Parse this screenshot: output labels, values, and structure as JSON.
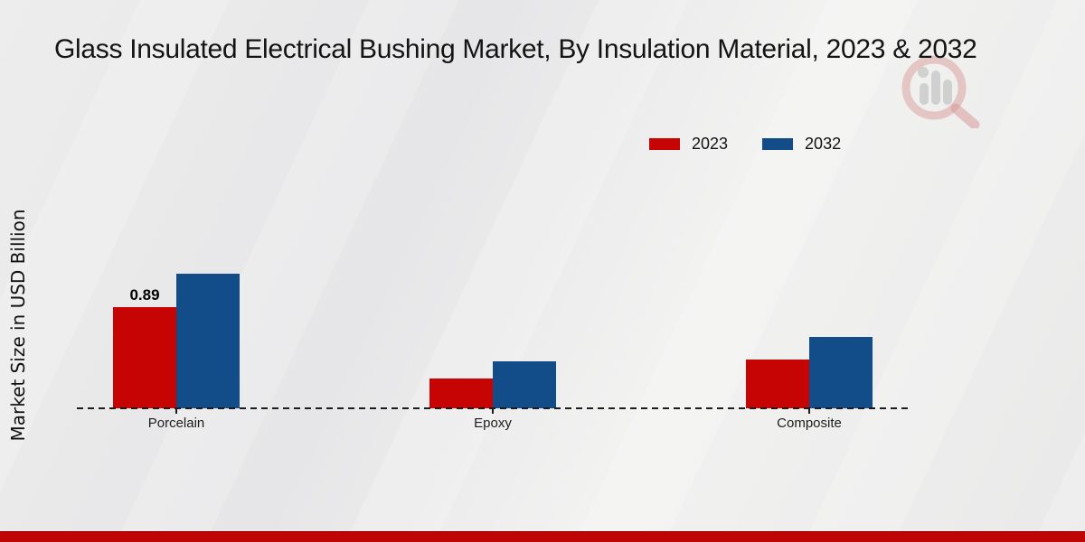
{
  "title": "Glass Insulated Electrical Bushing Market, By Insulation Material, 2023 & 2032",
  "legend": {
    "items": [
      {
        "label": "2023",
        "color": "#c70404"
      },
      {
        "label": "2032",
        "color": "#124d89"
      }
    ]
  },
  "chart_data": {
    "type": "bar",
    "title": "Glass Insulated Electrical Bushing Market, By Insulation Material, 2023 & 2032",
    "categories": [
      "Porcelain",
      "Epoxy",
      "Composite"
    ],
    "series": [
      {
        "name": "2023",
        "color": "#c70404",
        "values": [
          0.89,
          0.26,
          0.43
        ]
      },
      {
        "name": "2032",
        "color": "#124d89",
        "values": [
          1.18,
          0.41,
          0.63
        ]
      }
    ],
    "annotations": [
      {
        "series": "2023",
        "category": "Porcelain",
        "text": "0.89"
      }
    ],
    "xlabel": "",
    "ylabel": "Market Size in USD Billion",
    "ylim": [
      0,
      1.4
    ],
    "grid": false,
    "legend_position": "top-right",
    "baseline_style": "dashed",
    "x_axis_tick_marks": true
  },
  "colors": {
    "accent_footer_band": "#bf0404",
    "background": "#eaeaea",
    "text": "#141414"
  },
  "watermark_icon": "magnifier-bar-chart-logo"
}
